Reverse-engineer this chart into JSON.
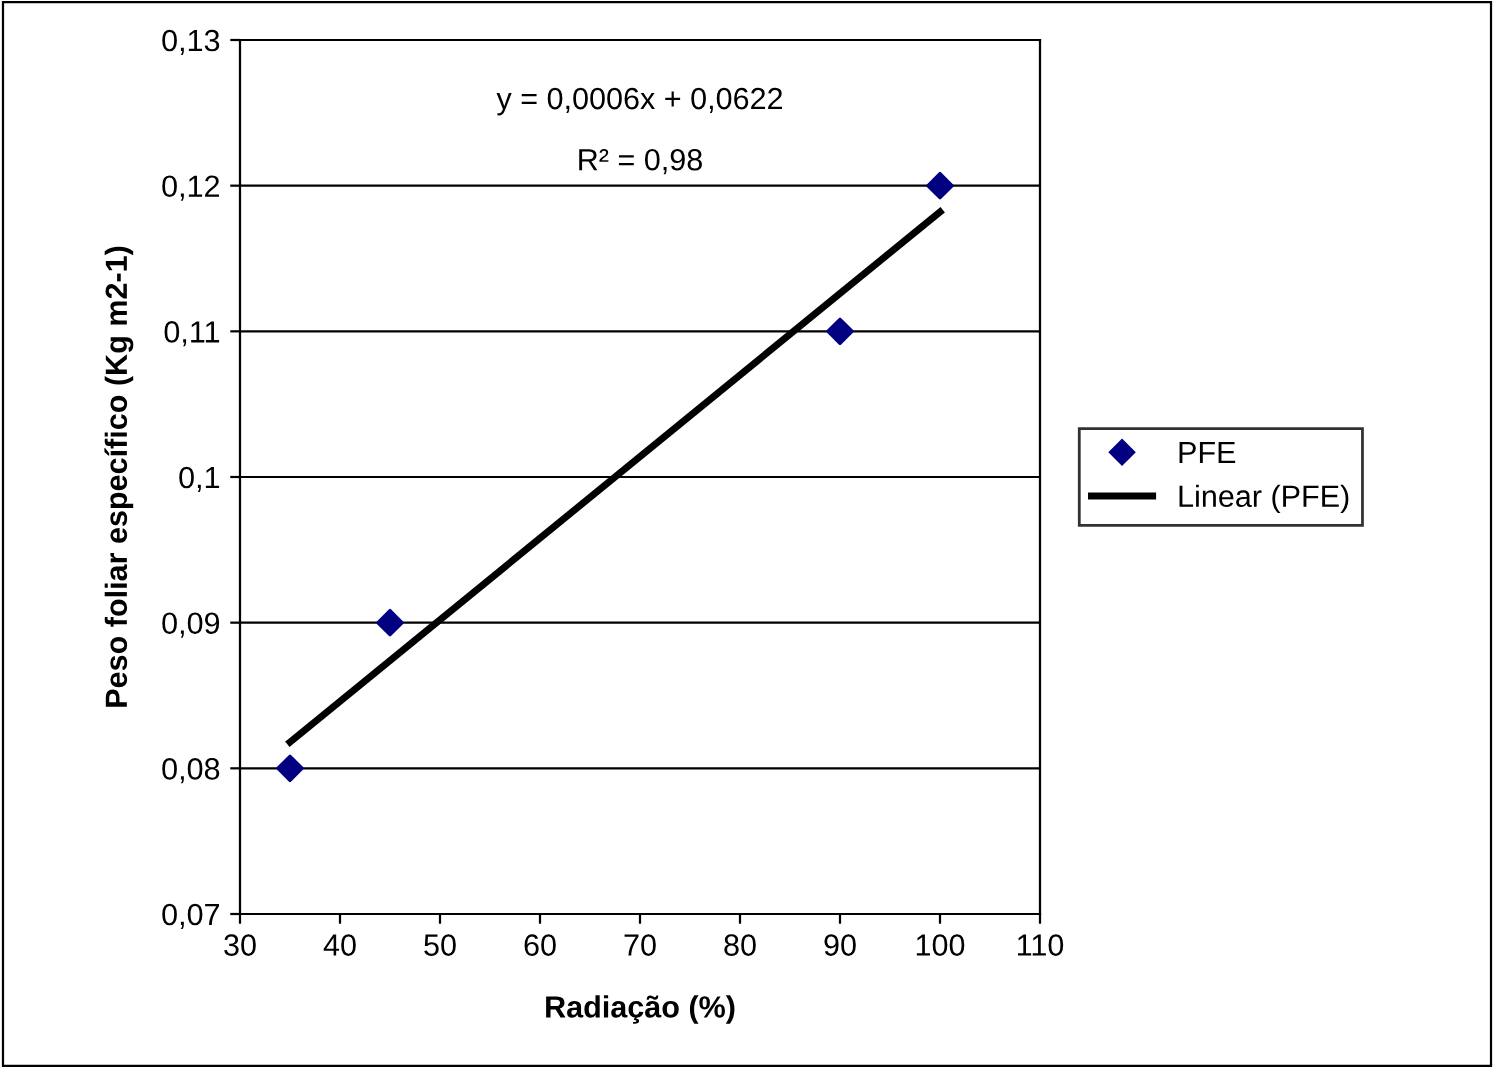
{
  "chart_data": {
    "type": "scatter",
    "xlabel": "Radiação (%)",
    "ylabel": "Peso foliar específico (Kg m2-1)",
    "series": [
      {
        "name": "PFE",
        "color": "#000080",
        "marker": "diamond",
        "x": [
          35,
          45,
          90,
          100
        ],
        "values": [
          0.08,
          0.09,
          0.11,
          0.12
        ]
      },
      {
        "name": "Linear (PFE)",
        "type": "line",
        "color": "#000000",
        "marker": "none",
        "line_style": "solid",
        "x": [
          35,
          100
        ],
        "values": [
          0.0818,
          0.1182
        ]
      }
    ],
    "annotations": [
      "y = 0,0006x + 0,0622",
      "R² = 0,98"
    ],
    "xlim": [
      30,
      110
    ],
    "xticks": [
      30,
      40,
      50,
      60,
      70,
      80,
      90,
      100,
      110
    ],
    "ylim": [
      0.07,
      0.13
    ],
    "yticks": [
      {
        "value": 0.07,
        "label": "0,07"
      },
      {
        "value": 0.08,
        "label": "0,08"
      },
      {
        "value": 0.09,
        "label": "0,09"
      },
      {
        "value": 0.1,
        "label": "0,1"
      },
      {
        "value": 0.11,
        "label": "0,11"
      },
      {
        "value": 0.12,
        "label": "0,12"
      },
      {
        "value": 0.13,
        "label": "0,13"
      }
    ],
    "grid": "y",
    "legend": "right"
  }
}
